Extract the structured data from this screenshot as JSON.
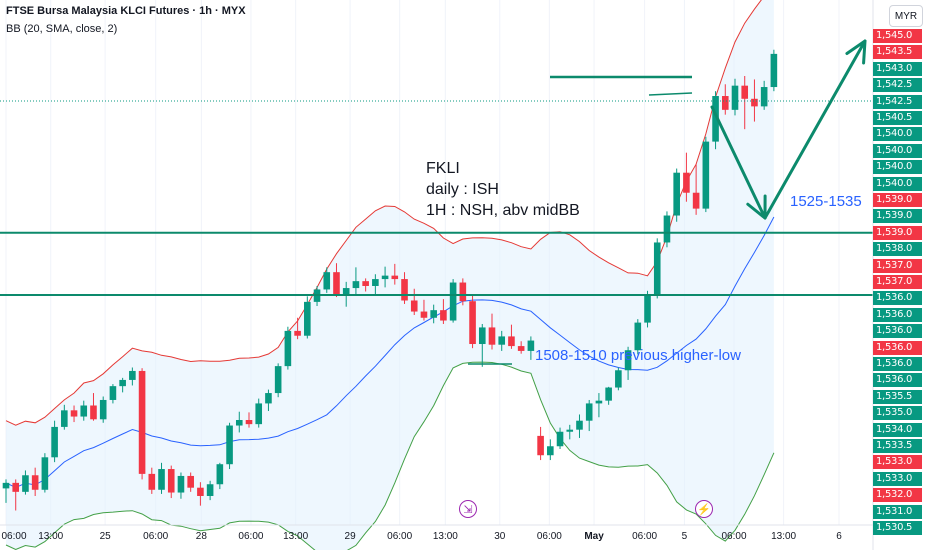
{
  "header": {
    "title": "FTSE Bursa Malaysia KLCI Futures · 1h · MYX",
    "indicator": "BB (20, SMA, close, 2)",
    "currency": "MYR"
  },
  "annotations": {
    "note_line1": "FKLI",
    "note_line2": "daily : ISH",
    "note_line3": "1H : NSH, abv midBB",
    "target_label": "1525-1535",
    "higher_low_label": "1508-1510 previous higher-low"
  },
  "colors": {
    "up": "#089981",
    "down": "#f23645",
    "bb_upper": "#e53935",
    "bb_basis": "#2962ff",
    "bb_lower": "#43a047",
    "bb_fill": "#e3f2fd",
    "drawing": "#0c8a6c",
    "event": "#9c27b0"
  },
  "events": [
    {
      "icon": "dividend-arrow-icon",
      "glyph": "⇲",
      "time": "13:00 on 29"
    },
    {
      "icon": "lightning-icon",
      "glyph": "⚡",
      "time": "May 5"
    }
  ],
  "chart_data": {
    "type": "candlestick",
    "title": "FTSE Bursa Malaysia KLCI Futures · 1h · MYX",
    "currency": "MYR",
    "indicator": "BB (20, SMA, close, 2)",
    "x_ticks": [
      {
        "slot": 0.0,
        "label": "06:00"
      },
      {
        "slot": 4.6,
        "label": "13:00"
      },
      {
        "slot": 10.2,
        "label": "25"
      },
      {
        "slot": 15.4,
        "label": "06:00"
      },
      {
        "slot": 20.1,
        "label": "28"
      },
      {
        "slot": 25.2,
        "label": "06:00"
      },
      {
        "slot": 29.8,
        "label": "13:00"
      },
      {
        "slot": 35.4,
        "label": "29"
      },
      {
        "slot": 40.5,
        "label": "06:00"
      },
      {
        "slot": 45.2,
        "label": "13:00"
      },
      {
        "slot": 50.8,
        "label": "30"
      },
      {
        "slot": 55.9,
        "label": "06:00"
      },
      {
        "slot": 60.5,
        "label": "May",
        "bold": true
      },
      {
        "slot": 65.7,
        "label": "06:00"
      },
      {
        "slot": 69.8,
        "label": "5"
      },
      {
        "slot": 74.9,
        "label": "06:00"
      },
      {
        "slot": 80.0,
        "label": "13:00"
      },
      {
        "slot": 85.7,
        "label": "6"
      }
    ],
    "price_axis_labels": [
      {
        "label": "1,545.0",
        "color": "#f23645"
      },
      {
        "label": "1,543.5",
        "color": "#f23645"
      },
      {
        "label": "1,543.0",
        "color": "#089981"
      },
      {
        "label": "1,542.5",
        "color": "#089981"
      },
      {
        "label": "1,542.5",
        "color": "#089981"
      },
      {
        "label": "1,540.5",
        "color": "#089981"
      },
      {
        "label": "1,540.0",
        "color": "#089981"
      },
      {
        "label": "1,540.0",
        "color": "#089981"
      },
      {
        "label": "1,540.0",
        "color": "#089981"
      },
      {
        "label": "1,540.0",
        "color": "#089981"
      },
      {
        "label": "1,539.0",
        "color": "#f23645"
      },
      {
        "label": "1,539.0",
        "color": "#089981"
      },
      {
        "label": "1,539.0",
        "color": "#f23645"
      },
      {
        "label": "1,538.0",
        "color": "#089981"
      },
      {
        "label": "1,537.0",
        "color": "#f23645"
      },
      {
        "label": "1,537.0",
        "color": "#f23645"
      },
      {
        "label": "1,536.0",
        "color": "#089981"
      },
      {
        "label": "1,536.0",
        "color": "#089981"
      },
      {
        "label": "1,536.0",
        "color": "#089981"
      },
      {
        "label": "1,536.0",
        "color": "#f23645"
      },
      {
        "label": "1,536.0",
        "color": "#089981"
      },
      {
        "label": "1,536.0",
        "color": "#089981"
      },
      {
        "label": "1,535.5",
        "color": "#089981"
      },
      {
        "label": "1,535.0",
        "color": "#089981"
      },
      {
        "label": "1,534.0",
        "color": "#089981"
      },
      {
        "label": "1,533.5",
        "color": "#089981"
      },
      {
        "label": "1,533.0",
        "color": "#f23645"
      },
      {
        "label": "1,533.0",
        "color": "#089981"
      },
      {
        "label": "1,532.0",
        "color": "#f23645"
      },
      {
        "label": "1,531.0",
        "color": "#089981"
      },
      {
        "label": "1,530.5",
        "color": "#089981"
      }
    ],
    "candles_note": "OHLC values estimated in price units (MYR index points) from the visual geometry; price axis tick labels are per-bar label tags as shown",
    "candles": [
      [
        1503.3,
        1504.6,
        1501.2,
        1504.1
      ],
      [
        1504.1,
        1504.6,
        1500.1,
        1502.8
      ],
      [
        1502.8,
        1505.9,
        1502.4,
        1505.2
      ],
      [
        1505.2,
        1506.3,
        1502.2,
        1503.1
      ],
      [
        1503.1,
        1508.4,
        1502.7,
        1507.8
      ],
      [
        1507.8,
        1513.1,
        1507.1,
        1512.2
      ],
      [
        1512.2,
        1515.4,
        1511.8,
        1514.6
      ],
      [
        1514.6,
        1515.3,
        1512.9,
        1513.7
      ],
      [
        1513.7,
        1516.0,
        1513.1,
        1515.3
      ],
      [
        1515.3,
        1517.1,
        1513.1,
        1513.3
      ],
      [
        1513.3,
        1516.6,
        1512.8,
        1516.1
      ],
      [
        1516.1,
        1518.4,
        1515.6,
        1518.1
      ],
      [
        1518.1,
        1519.3,
        1517.2,
        1519.0
      ],
      [
        1519.0,
        1520.8,
        1518.2,
        1520.3
      ],
      [
        1520.3,
        1520.7,
        1504.6,
        1505.4
      ],
      [
        1505.4,
        1506.3,
        1502.5,
        1503.1
      ],
      [
        1503.1,
        1507.0,
        1502.5,
        1506.1
      ],
      [
        1506.1,
        1506.6,
        1501.9,
        1502.7
      ],
      [
        1502.7,
        1505.6,
        1501.8,
        1505.1
      ],
      [
        1505.1,
        1505.6,
        1502.8,
        1503.4
      ],
      [
        1503.4,
        1504.2,
        1500.8,
        1502.2
      ],
      [
        1502.2,
        1504.4,
        1501.6,
        1503.9
      ],
      [
        1503.9,
        1507.0,
        1503.2,
        1506.8
      ],
      [
        1506.8,
        1512.8,
        1506.1,
        1512.4
      ],
      [
        1512.4,
        1514.4,
        1511.4,
        1513.2
      ],
      [
        1513.2,
        1514.3,
        1512.1,
        1512.6
      ],
      [
        1512.6,
        1516.3,
        1512.1,
        1515.6
      ],
      [
        1515.6,
        1517.6,
        1514.5,
        1517.1
      ],
      [
        1517.1,
        1521.4,
        1516.5,
        1521.0
      ],
      [
        1521.0,
        1526.7,
        1520.5,
        1526.1
      ],
      [
        1526.1,
        1528.0,
        1524.9,
        1525.4
      ],
      [
        1525.4,
        1531.1,
        1525.0,
        1530.3
      ],
      [
        1530.3,
        1532.6,
        1529.7,
        1532.1
      ],
      [
        1532.1,
        1535.3,
        1531.6,
        1534.6
      ],
      [
        1534.6,
        1535.9,
        1531.0,
        1531.4
      ],
      [
        1531.4,
        1533.2,
        1529.6,
        1532.3
      ],
      [
        1532.3,
        1535.3,
        1531.3,
        1533.3
      ],
      [
        1533.3,
        1533.7,
        1531.8,
        1532.6
      ],
      [
        1532.6,
        1534.3,
        1531.3,
        1533.6
      ],
      [
        1533.6,
        1535.4,
        1532.4,
        1534.1
      ],
      [
        1534.1,
        1535.8,
        1532.8,
        1533.6
      ],
      [
        1533.6,
        1534.6,
        1530.0,
        1530.5
      ],
      [
        1530.5,
        1532.2,
        1528.4,
        1528.9
      ],
      [
        1528.9,
        1530.6,
        1527.6,
        1528.0
      ],
      [
        1528.0,
        1529.9,
        1527.2,
        1529.1
      ],
      [
        1529.1,
        1530.7,
        1527.1,
        1527.6
      ],
      [
        1527.6,
        1533.6,
        1527.3,
        1533.1
      ],
      [
        1533.1,
        1533.7,
        1529.8,
        1530.4
      ],
      [
        1530.4,
        1531.4,
        1523.6,
        1524.2
      ],
      [
        1524.2,
        1527.1,
        1520.9,
        1526.6
      ],
      [
        1526.6,
        1528.6,
        1523.4,
        1524.1
      ],
      [
        1524.1,
        1526.1,
        1523.2,
        1525.3
      ],
      [
        1525.3,
        1527.0,
        1523.5,
        1523.9
      ],
      [
        1523.9,
        1524.6,
        1522.8,
        1523.2
      ],
      [
        1523.2,
        1525.3,
        1521.9,
        1524.7
      ],
      [
        1510.9,
        1512.2,
        1507.4,
        1508.1
      ],
      [
        1508.1,
        1510.4,
        1507.4,
        1509.4
      ],
      [
        1509.4,
        1512.1,
        1509.0,
        1511.5
      ],
      [
        1511.5,
        1512.5,
        1510.4,
        1511.8
      ],
      [
        1511.8,
        1514.0,
        1510.6,
        1513.1
      ],
      [
        1513.1,
        1516.1,
        1511.6,
        1515.6
      ],
      [
        1515.6,
        1517.1,
        1513.6,
        1516.0
      ],
      [
        1516.0,
        1518.0,
        1515.4,
        1517.9
      ],
      [
        1517.9,
        1520.8,
        1517.5,
        1520.4
      ],
      [
        1520.4,
        1523.8,
        1519.0,
        1523.3
      ],
      [
        1523.3,
        1527.8,
        1522.7,
        1527.3
      ],
      [
        1527.3,
        1531.9,
        1526.6,
        1531.4
      ],
      [
        1531.4,
        1539.5,
        1530.8,
        1538.9
      ],
      [
        1538.9,
        1543.4,
        1538.2,
        1542.8
      ],
      [
        1542.8,
        1549.6,
        1541.9,
        1549.0
      ],
      [
        1549.0,
        1551.9,
        1544.8,
        1546.1
      ],
      [
        1546.1,
        1550.2,
        1542.9,
        1543.8
      ],
      [
        1543.8,
        1554.2,
        1543.3,
        1553.5
      ],
      [
        1553.5,
        1560.8,
        1552.4,
        1560.1
      ],
      [
        1560.1,
        1561.8,
        1557.4,
        1558.1
      ],
      [
        1558.1,
        1562.6,
        1557.3,
        1561.6
      ],
      [
        1561.6,
        1563.0,
        1555.3,
        1559.7
      ],
      [
        1559.7,
        1562.5,
        1556.4,
        1558.6
      ],
      [
        1558.6,
        1562.3,
        1558.1,
        1561.4
      ],
      [
        1561.4,
        1566.8,
        1560.8,
        1566.2
      ]
    ],
    "levels": [
      1540.3,
      1531.3
    ],
    "ylim": [
      1498,
      1574
    ],
    "projection": {
      "from": [
        1566.2,
        "now"
      ],
      "down_to": 1530.5,
      "up_to": 1572.9
    }
  }
}
